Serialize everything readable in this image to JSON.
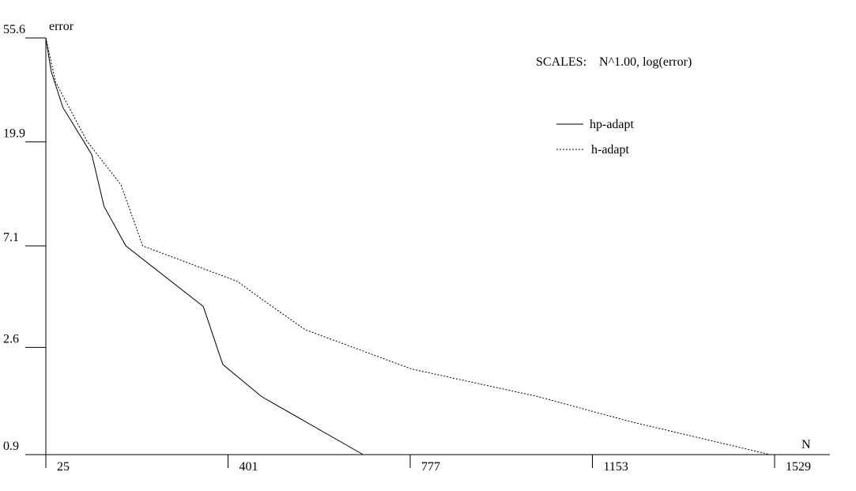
{
  "chart_data": {
    "type": "line",
    "xlabel": "N",
    "ylabel": "error",
    "scale_note": "SCALES:    N^1.00, log(error)",
    "x_scale": "linear",
    "y_scale": "log",
    "xlim": [
      25,
      1529
    ],
    "ylim": [
      0.9,
      55.6
    ],
    "x_ticks": [
      {
        "value": 25,
        "label": "25"
      },
      {
        "value": 401,
        "label": "401"
      },
      {
        "value": 777,
        "label": "777"
      },
      {
        "value": 1153,
        "label": "1153"
      },
      {
        "value": 1529,
        "label": "1529"
      }
    ],
    "y_ticks": [
      {
        "value": 0.9,
        "label": "0.9"
      },
      {
        "value": 2.6,
        "label": "2.6"
      },
      {
        "value": 7.1,
        "label": "7.1"
      },
      {
        "value": 19.9,
        "label": "19.9"
      },
      {
        "value": 55.6,
        "label": "55.6"
      }
    ],
    "legend_position": "top-right",
    "series": [
      {
        "name": "hp-adapt",
        "style": "solid",
        "color": "#000000",
        "x": [
          25,
          36,
          60,
          120,
          145,
          190,
          350,
          390,
          470,
          680
        ],
        "y": [
          55.6,
          40.0,
          28.0,
          17.5,
          10.5,
          7.1,
          3.9,
          2.2,
          1.6,
          0.9
        ]
      },
      {
        "name": "h-adapt",
        "style": "dotted",
        "color": "#000000",
        "x": [
          25,
          45,
          110,
          180,
          225,
          420,
          470,
          560,
          780,
          1040,
          1230,
          1520
        ],
        "y": [
          55.6,
          36.0,
          20.0,
          13.0,
          7.1,
          5.0,
          4.2,
          3.1,
          2.1,
          1.6,
          1.25,
          0.9
        ]
      }
    ]
  }
}
